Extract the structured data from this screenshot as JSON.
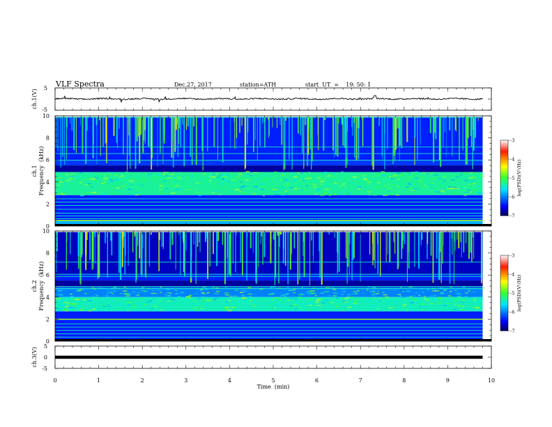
{
  "header": {
    "title": "VLF  Spectra",
    "date": "Dec.27, 2017",
    "station": "station=ATH",
    "start_ut": "start  UT  =    19: 50: 1"
  },
  "chart_data": [
    {
      "type": "line",
      "panel": "ch1-waveform",
      "ylabel": "ch.1(V)",
      "ylim": [
        -5,
        5
      ],
      "yticks": [
        "5",
        "-5"
      ],
      "x_range_min": [
        0,
        9.8
      ],
      "description_values": {
        "baseline_v": 0.1,
        "fluctuation_v": 0.3,
        "max_spike_v": 1.6
      }
    },
    {
      "type": "heatmap",
      "panel": "ch1-spectrogram",
      "ylabel": "ch.1\nFrequency  (kHz)",
      "ylabel_line1": "ch.1",
      "ylabel_line2": "Frequency  (kHz)",
      "ylim": [
        0,
        10
      ],
      "yticks": [
        "0",
        "2",
        "4",
        "6",
        "8",
        "10"
      ],
      "xlim": [
        0,
        10
      ],
      "data_extent_min": [
        0,
        9.8
      ],
      "colorbar": {
        "label": "log(PSD)(V²/Hz)",
        "range": [
          -7,
          -3
        ],
        "ticks": [
          "-3",
          "-4",
          "-5",
          "-6",
          "-7"
        ]
      },
      "bands_khz": [
        {
          "from": 9.9,
          "to": 6.0,
          "log_psd": -6.4
        },
        {
          "from": 6.0,
          "to": 5.5,
          "log_psd": -6.3
        },
        {
          "from": 5.5,
          "to": 4.9,
          "log_psd": -6.8
        },
        {
          "from": 4.9,
          "to": 2.8,
          "log_psd": -5.3
        },
        {
          "from": 2.8,
          "to": 0.5,
          "log_psd": -6.4
        },
        {
          "from": 0.5,
          "to": 0.0,
          "log_psd": -5.8
        }
      ],
      "spheric_lines_khz": [
        9.9,
        7.2,
        6.6,
        6.0,
        2.5,
        2.2,
        1.9,
        1.55,
        1.2,
        0.95,
        0.7,
        0.55
      ],
      "hum_line_khz": 0.5
    },
    {
      "type": "heatmap",
      "panel": "ch2-spectrogram",
      "ylabel": "ch.2\nFrequency  (kHz)",
      "ylabel_line1": "ch.2",
      "ylabel_line2": "Frequency  (kHz)",
      "ylim": [
        0,
        10
      ],
      "yticks": [
        "0",
        "2",
        "4",
        "6",
        "8",
        "10"
      ],
      "xlim": [
        0,
        10
      ],
      "data_extent_min": [
        0,
        9.8
      ],
      "colorbar": {
        "label": "log(PSD)(V²/Hz)",
        "range": [
          -7,
          -3
        ],
        "ticks": [
          "-3",
          "-4",
          "-5",
          "-6",
          "-7"
        ]
      },
      "bands_khz": [
        {
          "from": 9.9,
          "to": 6.1,
          "log_psd": -6.7
        },
        {
          "from": 6.1,
          "to": 5.5,
          "log_psd": -6.4
        },
        {
          "from": 5.5,
          "to": 4.9,
          "log_psd": -6.8
        },
        {
          "from": 4.9,
          "to": 4.0,
          "log_psd": -6.0
        },
        {
          "from": 4.0,
          "to": 2.7,
          "log_psd": -5.4
        },
        {
          "from": 2.7,
          "to": 0.0,
          "log_psd": -6.4
        }
      ],
      "spheric_lines_khz": [
        7.2,
        6.1,
        5.9,
        5.0,
        4.8,
        2.0,
        1.6,
        1.3,
        1.0,
        0.7,
        0.4
      ],
      "hum_line_khz": 2.0
    },
    {
      "type": "line",
      "panel": "ch3-waveform",
      "ylabel": "ch.3(V)",
      "ylim": [
        -5,
        5
      ],
      "yticks": [
        "5",
        "0",
        "-5"
      ],
      "xlabel": "Time  (min)",
      "xlim": [
        0,
        10
      ],
      "xticks": [
        "0",
        "1",
        "2",
        "3",
        "4",
        "5",
        "6",
        "7",
        "8",
        "9",
        "10"
      ],
      "x_range_min": [
        0,
        9.8
      ],
      "description_values": {
        "constant_v": 0.0
      }
    }
  ]
}
